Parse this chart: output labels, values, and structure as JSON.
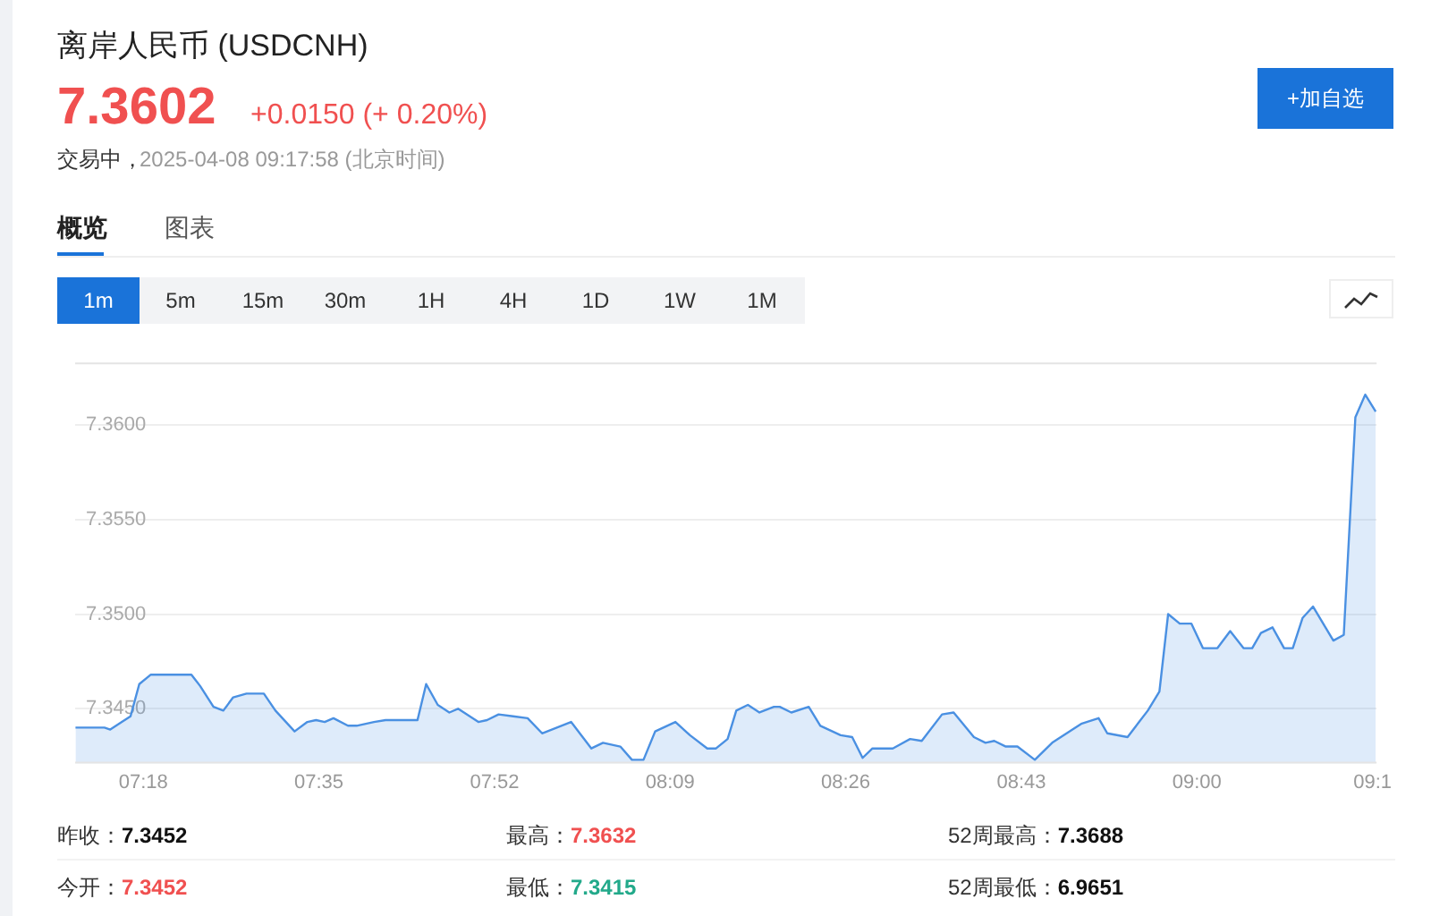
{
  "chart_data": {
    "type": "area",
    "title": "离岸人民币  (USDCNH)",
    "annotations": [
      "7.3602",
      "+0.0150 (+ 0.20%)",
      "交易中，",
      "2025-04-08 09:17:58  (北京时间)",
      "+加自选",
      "概览",
      "图表",
      "1m",
      "5m",
      "15m",
      "30m",
      "1H",
      "4H",
      "1D",
      "1W",
      "1M",
      "昨收：",
      "7.3452",
      "最高：",
      "7.3632",
      "52周最高：",
      "7.3688",
      "今开：",
      "7.3452",
      "最低：",
      "7.3415",
      "52周最低：",
      "6.9651"
    ],
    "x": [
      7.1906,
      7.2373,
      7.2467,
      7.2654,
      7.2794,
      7.2935,
      7.3122,
      7.3776,
      7.3917,
      7.4132,
      7.4291,
      7.445,
      7.4665,
      7.4945,
      7.5132,
      7.5441,
      7.5647,
      7.5787,
      7.5927,
      7.6068,
      7.6302,
      7.6442,
      7.6722,
      7.6909,
      7.7424,
      7.7564,
      7.7751,
      7.7938,
      7.8079,
      7.8406,
      7.8546,
      7.8733,
      7.8967,
      7.9201,
      7.9435,
      7.9902,
      8.023,
      8.0417,
      8.0697,
      8.0884,
      8.1071,
      8.1259,
      8.1586,
      8.182,
      8.21,
      8.2241,
      8.2428,
      8.2568,
      8.2755,
      8.2942,
      8.3176,
      8.3269,
      8.3456,
      8.3737,
      8.3924,
      8.4251,
      8.4438,
      8.4606,
      8.4765,
      8.5093,
      8.5373,
      8.556,
      8.5888,
      8.6075,
      8.6402,
      8.6589,
      8.673,
      8.6917,
      8.7104,
      8.7385,
      8.7665,
      8.7993,
      8.8133,
      8.8414,
      8.8554,
      8.8881,
      8.9208,
      8.9395,
      8.9536,
      8.9723,
      8.991,
      9.0097,
      9.0331,
      9.0537,
      9.0752,
      9.0892,
      9.1033,
      9.122,
      9.1407,
      9.1547,
      9.1706,
      9.1874,
      9.2202,
      9.237,
      9.2557,
      9.2716,
      9.2885
    ],
    "series": [
      {
        "color": "#4a90e2",
        "values": [
          7.344,
          7.344,
          7.3439,
          7.3443,
          7.3446,
          7.3463,
          7.3468,
          7.3468,
          7.3462,
          7.3451,
          7.3449,
          7.3456,
          7.3458,
          7.3458,
          7.3449,
          7.3438,
          7.3443,
          7.3444,
          7.3443,
          7.3445,
          7.3441,
          7.3441,
          7.3443,
          7.3444,
          7.3444,
          7.3463,
          7.3452,
          7.3448,
          7.345,
          7.3443,
          7.3444,
          7.3447,
          7.3446,
          7.3445,
          7.3437,
          7.3443,
          7.3429,
          7.3432,
          7.343,
          7.3423,
          7.3423,
          7.3438,
          7.3443,
          7.3436,
          7.3429,
          7.3429,
          7.3434,
          7.3449,
          7.3452,
          7.3448,
          7.3451,
          7.3451,
          7.3448,
          7.3451,
          7.3441,
          7.3436,
          7.3435,
          7.3424,
          7.3429,
          7.3429,
          7.3434,
          7.3433,
          7.3447,
          7.3448,
          7.3435,
          7.3432,
          7.3433,
          7.343,
          7.343,
          7.3423,
          7.3432,
          7.3439,
          7.3442,
          7.3445,
          7.3437,
          7.3435,
          7.3449,
          7.3459,
          7.35,
          7.3495,
          7.3495,
          7.3482,
          7.3482,
          7.3491,
          7.3482,
          7.3482,
          7.349,
          7.3493,
          7.3482,
          7.3482,
          7.3498,
          7.3504,
          7.3486,
          7.3489,
          7.3604,
          7.3616,
          7.3607
        ]
      }
    ],
    "xlim": [
      7.19,
      9.29
    ],
    "xticks": [
      {
        "value": 7.3,
        "label": "07:18"
      },
      {
        "value": 7.5833,
        "label": "07:35"
      },
      {
        "value": 7.8667,
        "label": "07:52"
      },
      {
        "value": 8.15,
        "label": "08:09"
      },
      {
        "value": 8.4333,
        "label": "08:26"
      },
      {
        "value": 8.7167,
        "label": "08:43"
      },
      {
        "value": 9.0,
        "label": "09:00"
      },
      {
        "value": 9.2833,
        "label": "09:1"
      }
    ],
    "ylim": [
      7.3421,
      7.3633
    ],
    "yticks": [
      {
        "value": 7.345,
        "label": "7.3450"
      },
      {
        "value": 7.35,
        "label": "7.3500"
      },
      {
        "value": 7.355,
        "label": "7.3550"
      },
      {
        "value": 7.36,
        "label": "7.3600"
      }
    ],
    "grid": "y"
  }
}
